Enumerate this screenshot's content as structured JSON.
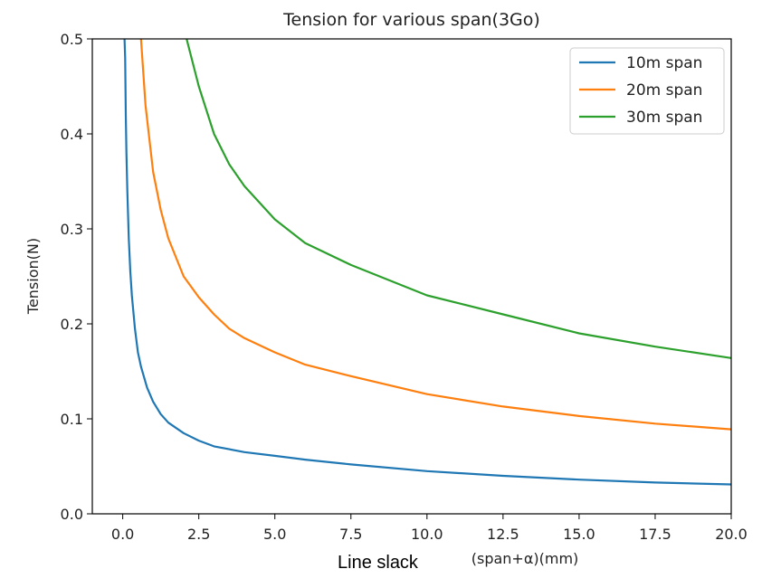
{
  "chart_data": {
    "type": "line",
    "title": "Tension for various span(3Go)",
    "ylabel": "Tension(N)",
    "xlabel_visible": "(span+α)(mm)",
    "xlim": [
      -1,
      20
    ],
    "ylim": [
      0,
      0.5
    ],
    "x_ticks": [
      "0.0",
      "2.5",
      "5.0",
      "7.5",
      "10.0",
      "12.5",
      "15.0",
      "17.5",
      "20.0"
    ],
    "y_ticks": [
      "0.0",
      "0.1",
      "0.2",
      "0.3",
      "0.4",
      "0.5"
    ],
    "grid": false,
    "legend_position": "top-right",
    "series": [
      {
        "name": "10m span",
        "color": "#1f77b4",
        "x": [
          0.06,
          0.08,
          0.1,
          0.12,
          0.15,
          0.2,
          0.25,
          0.3,
          0.4,
          0.5,
          0.6,
          0.8,
          1.0,
          1.25,
          1.5,
          2.0,
          2.5,
          3.0,
          4.0,
          5.0,
          6.0,
          7.5,
          10.0,
          12.5,
          15.0,
          17.5,
          20.0
        ],
        "y": [
          0.5,
          0.48,
          0.42,
          0.38,
          0.34,
          0.29,
          0.255,
          0.23,
          0.195,
          0.17,
          0.155,
          0.133,
          0.118,
          0.105,
          0.096,
          0.085,
          0.077,
          0.071,
          0.065,
          0.061,
          0.057,
          0.052,
          0.045,
          0.04,
          0.036,
          0.033,
          0.031
        ]
      },
      {
        "name": "20m span",
        "color": "#ff7f0e",
        "x": [
          0.6,
          0.75,
          1.0,
          1.25,
          1.5,
          2.0,
          2.5,
          3.0,
          3.5,
          4.0,
          5.0,
          6.0,
          7.5,
          10.0,
          12.5,
          15.0,
          17.5,
          20.0
        ],
        "y": [
          0.5,
          0.43,
          0.36,
          0.32,
          0.29,
          0.25,
          0.228,
          0.21,
          0.195,
          0.185,
          0.17,
          0.157,
          0.145,
          0.126,
          0.113,
          0.103,
          0.095,
          0.089
        ]
      },
      {
        "name": "30m span",
        "color": "#2ca02c",
        "x": [
          2.1,
          2.5,
          3.0,
          3.5,
          4.0,
          5.0,
          6.0,
          7.5,
          10.0,
          12.5,
          15.0,
          17.5,
          20.0
        ],
        "y": [
          0.5,
          0.45,
          0.4,
          0.368,
          0.345,
          0.31,
          0.285,
          0.262,
          0.23,
          0.21,
          0.19,
          0.176,
          0.164
        ]
      }
    ]
  },
  "overlay": {
    "xlabel_text": "Line slack"
  }
}
